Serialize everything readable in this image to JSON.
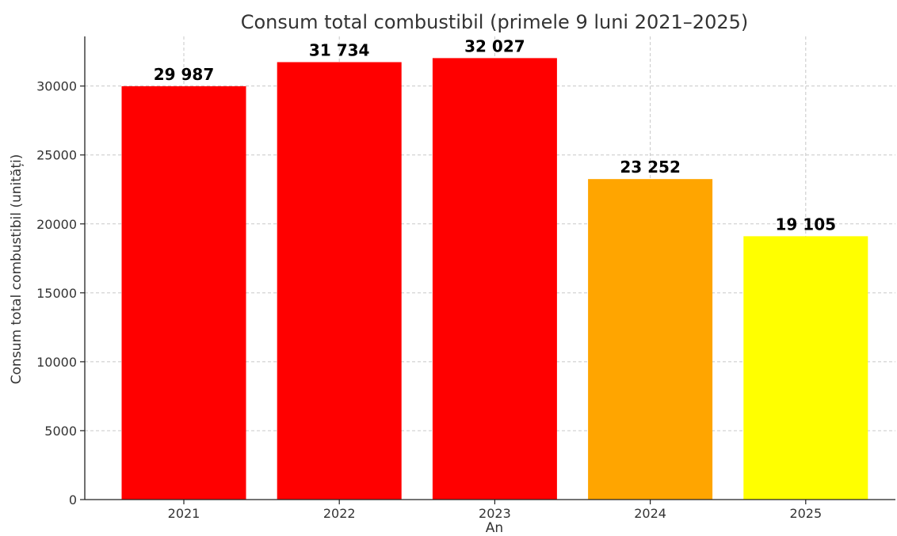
{
  "chart_data": {
    "type": "bar",
    "title": "Consum total combustibil (primele 9 luni 2021–2025)",
    "xlabel": "An",
    "ylabel": "Consum total combustibil (unități)",
    "categories": [
      "2021",
      "2022",
      "2023",
      "2024",
      "2025"
    ],
    "values": [
      29987,
      31734,
      32027,
      23252,
      19105
    ],
    "value_labels": [
      "29 987",
      "31 734",
      "32 027",
      "23 252",
      "19 105"
    ],
    "bar_colors": [
      "#ff0000",
      "#ff0000",
      "#ff0000",
      "#ffa500",
      "#ffff00"
    ],
    "ylim": [
      0,
      33600
    ],
    "yticks": [
      0,
      5000,
      10000,
      15000,
      20000,
      25000,
      30000
    ],
    "ytick_labels": [
      "0",
      "5000",
      "10000",
      "15000",
      "20000",
      "25000",
      "30000"
    ],
    "grid": true,
    "legend": "none"
  }
}
